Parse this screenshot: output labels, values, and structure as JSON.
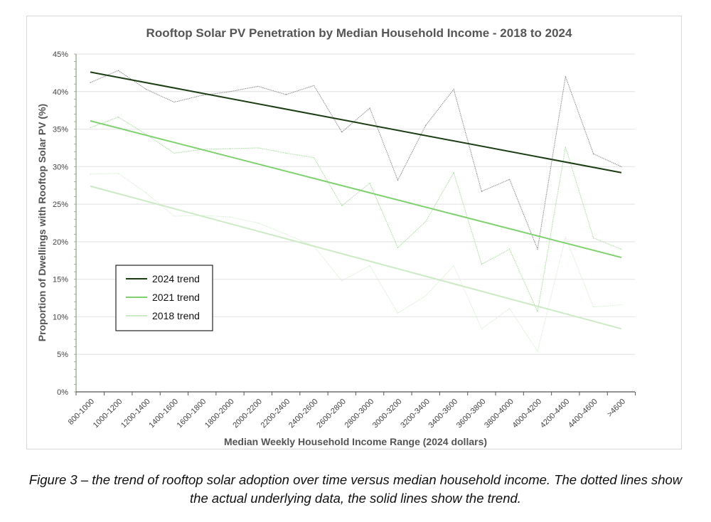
{
  "caption": "Figure 3 – the trend of rooftop solar adoption over time versus median household income.  The dotted lines show the actual underlying data, the solid lines show the trend.",
  "chart_data": {
    "type": "line",
    "title": "Rooftop Solar PV Penetration by Median Household Income - 2018 to 2024",
    "xlabel": "Median Weekly Household Income Range (2024 dollars)",
    "ylabel": "Proportion of Dwellings with Rooftop Solar PV (%)",
    "ylim": [
      0,
      45
    ],
    "yticks": [
      "0%",
      "5%",
      "10%",
      "15%",
      "20%",
      "25%",
      "30%",
      "35%",
      "40%",
      "45%"
    ],
    "grid": true,
    "legend_placement": "lower-left",
    "categories": [
      "800-1000",
      "1000-1200",
      "1200-1400",
      "1400-1600",
      "1600-1800",
      "1800-2000",
      "2000-2200",
      "2200-2400",
      "2400-2600",
      "2600-2800",
      "2800-3000",
      "3000-3200",
      "3200-3400",
      "3400-3600",
      "3600-3800",
      "3800-4000",
      "4000-4200",
      "4200-4400",
      "4400-4600",
      ">4600"
    ],
    "series": [
      {
        "year": "2024",
        "color": "#8a8a8a",
        "style": "dotted",
        "values": [
          41.2,
          42.8,
          40.3,
          38.6,
          39.5,
          40.0,
          40.7,
          39.6,
          40.8,
          34.6,
          37.8,
          28.2,
          35.5,
          40.3,
          26.7,
          28.3,
          19.0,
          42.0,
          31.7,
          30.0
        ]
      },
      {
        "year": "2021",
        "color": "#a9dca0",
        "style": "dotted",
        "values": [
          35.2,
          36.6,
          34.3,
          31.8,
          32.3,
          32.4,
          32.5,
          31.8,
          31.2,
          24.8,
          27.8,
          19.2,
          22.7,
          29.2,
          17.0,
          19.0,
          10.7,
          32.6,
          20.5,
          19.0
        ]
      },
      {
        "year": "2018",
        "color": "#d6eed2",
        "style": "dotted",
        "values": [
          29.0,
          29.1,
          26.5,
          23.4,
          23.5,
          23.3,
          22.5,
          21.0,
          19.4,
          14.8,
          16.8,
          10.5,
          12.8,
          16.8,
          8.4,
          11.1,
          5.4,
          20.6,
          11.3,
          11.6
        ]
      }
    ],
    "trends": [
      {
        "name": "2024 trend",
        "color": "#1c3d14",
        "start": 42.6,
        "end": 29.2
      },
      {
        "name": "2021 trend",
        "color": "#7fd06f",
        "start": 36.1,
        "end": 17.9
      },
      {
        "name": "2018 trend",
        "color": "#cdeac6",
        "start": 27.4,
        "end": 8.4
      }
    ]
  }
}
